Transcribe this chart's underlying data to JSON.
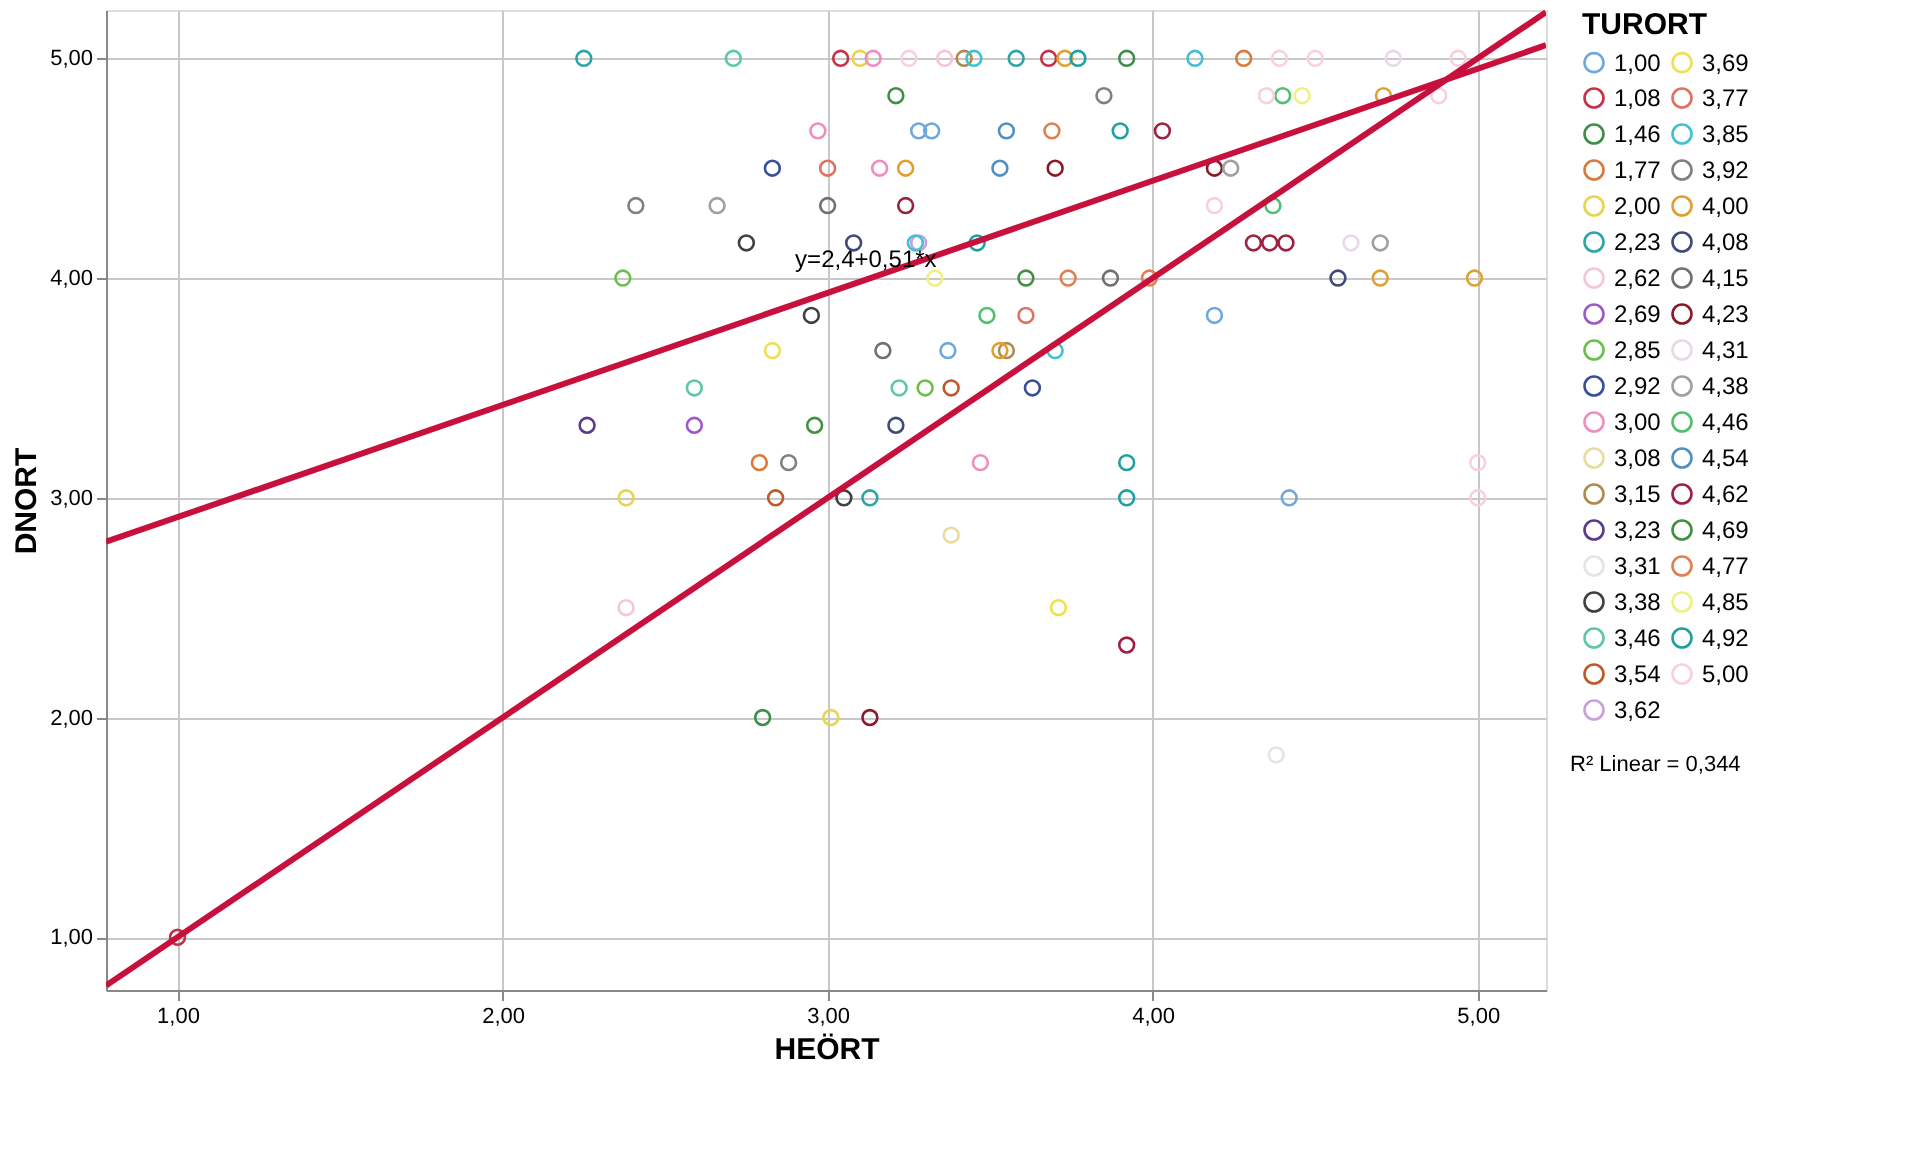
{
  "chart_data": {
    "type": "scatter",
    "xlabel": "HEÖRT",
    "ylabel": "DNORT",
    "legend_title": "TURORT",
    "legend": "right",
    "grid": true,
    "marker": "circle",
    "xlim": [
      0.78,
      5.21
    ],
    "ylim": [
      0.76,
      5.22
    ],
    "xticks": [
      {
        "value": 1,
        "label": "1,00"
      },
      {
        "value": 2,
        "label": "2,00"
      },
      {
        "value": 3,
        "label": "3,00"
      },
      {
        "value": 4,
        "label": "4,00"
      },
      {
        "value": 5,
        "label": "5,00"
      }
    ],
    "yticks": [
      {
        "value": 1,
        "label": "1,00"
      },
      {
        "value": 2,
        "label": "2,00"
      },
      {
        "value": 3,
        "label": "3,00"
      },
      {
        "value": 4,
        "label": "4,00"
      },
      {
        "value": 5,
        "label": "5,00"
      }
    ],
    "annotations": [
      {
        "text": "y=2,4+0,51*x",
        "x": 2.9,
        "y": 3.93
      },
      "R² Linear = 0,344"
    ],
    "series": [
      {
        "name": "1,00",
        "color": "#6fa8dc",
        "x": [
          3.32,
          3.28,
          4.19,
          4.42,
          3.37
        ],
        "values": [
          4.67,
          4.67,
          3.83,
          3.0,
          3.67
        ]
      },
      {
        "name": "1,08",
        "color": "#c8304a",
        "x": [
          1.0,
          3.04,
          3.68
        ],
        "values": [
          1.0,
          5.0,
          5.0
        ]
      },
      {
        "name": "1,46",
        "color": "#3e8e4a",
        "x": [
          2.8,
          3.92
        ],
        "values": [
          2.0,
          5.0
        ]
      },
      {
        "name": "1,77",
        "color": "#d97a3a",
        "x": [
          4.28,
          2.79
        ],
        "values": [
          5.0,
          3.16
        ]
      },
      {
        "name": "2,00",
        "color": "#e8d44d",
        "x": [
          3.1,
          3.01,
          2.38
        ],
        "values": [
          5.0,
          2.0,
          3.0
        ]
      },
      {
        "name": "2,23",
        "color": "#2ba5a5",
        "x": [
          2.25,
          3.58,
          3.13
        ],
        "values": [
          5.0,
          5.0,
          3.0
        ]
      },
      {
        "name": "2,62",
        "color": "#f5c6d6",
        "x": [
          3.36,
          2.38
        ],
        "values": [
          5.0,
          2.5
        ]
      },
      {
        "name": "2,69",
        "color": "#9b59c9",
        "x": [
          2.59
        ],
        "values": [
          3.33
        ]
      },
      {
        "name": "2,85",
        "color": "#6cc04a",
        "x": [
          2.37,
          3.3
        ],
        "values": [
          4.0,
          3.5
        ]
      },
      {
        "name": "2,92",
        "color": "#3a4f9a",
        "x": [
          2.83,
          3.63
        ],
        "values": [
          4.5,
          3.5
        ]
      },
      {
        "name": "3,00",
        "color": "#f08cc0",
        "x": [
          3.14,
          2.97,
          3.16,
          3.47
        ],
        "values": [
          5.0,
          4.67,
          4.5,
          3.16
        ]
      },
      {
        "name": "3,08",
        "color": "#e6dca0",
        "x": [
          3.38
        ],
        "values": [
          2.83
        ]
      },
      {
        "name": "3,15",
        "color": "#b08a4a",
        "x": [
          3.42,
          3.55
        ],
        "values": [
          5.0,
          3.67
        ]
      },
      {
        "name": "3,23",
        "color": "#5b3a8a",
        "x": [
          2.26
        ],
        "values": [
          3.33
        ]
      },
      {
        "name": "3,31",
        "color": "#e4e4e4",
        "x": [
          4.38
        ],
        "values": [
          1.83
        ]
      },
      {
        "name": "3,38",
        "color": "#404040",
        "x": [
          2.75,
          3.05,
          2.95
        ],
        "values": [
          4.16,
          3.0,
          3.83
        ]
      },
      {
        "name": "3,46",
        "color": "#5ec8a0",
        "x": [
          2.71,
          2.59,
          3.22
        ],
        "values": [
          5.0,
          3.5,
          3.5
        ]
      },
      {
        "name": "3,54",
        "color": "#c0582a",
        "x": [
          3.38,
          2.84
        ],
        "values": [
          3.5,
          3.0
        ]
      },
      {
        "name": "3,62",
        "color": "#c8a0e0",
        "x": [
          3.28
        ],
        "values": [
          4.16
        ]
      },
      {
        "name": "3,69",
        "color": "#f0e050",
        "x": [
          3.71,
          2.83
        ],
        "values": [
          2.5,
          3.67
        ]
      },
      {
        "name": "3,77",
        "color": "#e07060",
        "x": [
          3.0,
          3.61
        ],
        "values": [
          4.5,
          3.83
        ]
      },
      {
        "name": "3,85",
        "color": "#40c0d0",
        "x": [
          3.45,
          4.13,
          3.27,
          3.7
        ],
        "values": [
          5.0,
          5.0,
          4.16,
          3.67
        ]
      },
      {
        "name": "3,92",
        "color": "#808080",
        "x": [
          3.85,
          2.41,
          2.88
        ],
        "values": [
          4.83,
          4.33,
          3.16
        ]
      },
      {
        "name": "4,00",
        "color": "#e0a030",
        "x": [
          3.73,
          4.71,
          4.99,
          4.7,
          3.24,
          3.53
        ],
        "values": [
          5.0,
          4.83,
          4.0,
          4.0,
          4.5,
          3.67
        ]
      },
      {
        "name": "4,08",
        "color": "#404a7a",
        "x": [
          3.08,
          3.21,
          4.57
        ],
        "values": [
          4.16,
          3.33,
          4.0
        ]
      },
      {
        "name": "4,15",
        "color": "#707070",
        "x": [
          3.0,
          3.17,
          3.87
        ],
        "values": [
          4.33,
          3.67,
          4.0
        ]
      },
      {
        "name": "4,23",
        "color": "#8a1a2a",
        "x": [
          4.19,
          3.7,
          3.13
        ],
        "values": [
          4.5,
          4.5,
          2.0
        ]
      },
      {
        "name": "4,31",
        "color": "#e8d8e8",
        "x": [
          4.74,
          4.61
        ],
        "values": [
          5.0,
          4.16
        ]
      },
      {
        "name": "4,38",
        "color": "#a0a0a0",
        "x": [
          2.66,
          4.24,
          4.7
        ],
        "values": [
          4.33,
          4.5,
          4.16
        ]
      },
      {
        "name": "4,46",
        "color": "#50c070",
        "x": [
          4.4,
          4.37,
          3.49
        ],
        "values": [
          4.83,
          4.33,
          3.83
        ]
      },
      {
        "name": "4,54",
        "color": "#5090c0",
        "x": [
          3.55,
          3.53
        ],
        "values": [
          4.67,
          4.5
        ]
      },
      {
        "name": "4,62",
        "color": "#a02040",
        "x": [
          3.24,
          4.03,
          4.31,
          4.36,
          4.41,
          3.92
        ],
        "values": [
          4.33,
          4.67,
          4.16,
          4.16,
          4.16,
          2.33
        ]
      },
      {
        "name": "4,69",
        "color": "#409040",
        "x": [
          3.21,
          2.96,
          3.61
        ],
        "values": [
          4.83,
          3.33,
          4.0
        ]
      },
      {
        "name": "4,77",
        "color": "#e08050",
        "x": [
          3.69,
          3.99,
          3.74
        ],
        "values": [
          4.67,
          4.0,
          4.0
        ]
      },
      {
        "name": "4,85",
        "color": "#f0f080",
        "x": [
          4.46,
          3.33
        ],
        "values": [
          4.83,
          4.0
        ]
      },
      {
        "name": "4,92",
        "color": "#20a0a0",
        "x": [
          3.77,
          3.92,
          3.92,
          3.46,
          3.9
        ],
        "values": [
          5.0,
          3.0,
          3.16,
          4.16,
          4.67
        ]
      },
      {
        "name": "5,00",
        "color": "#f8d0dc",
        "x": [
          3.25,
          4.39,
          4.5,
          4.94,
          4.19,
          5.0,
          5.0,
          4.88,
          4.35
        ],
        "values": [
          5.0,
          5.0,
          5.0,
          5.0,
          4.33,
          3.16,
          3.0,
          4.83,
          4.83
        ]
      },
      {
        "type": "line",
        "color": "#c8103c",
        "marker": "none",
        "line_style": "solid",
        "x": [
          0.78,
          5.21
        ],
        "values": [
          0.78,
          5.21
        ]
      },
      {
        "type": "line",
        "color": "#c8103c",
        "marker": "none",
        "line_style": "solid",
        "x": [
          0.78,
          5.21
        ],
        "values": [
          2.8,
          5.06
        ]
      }
    ]
  }
}
